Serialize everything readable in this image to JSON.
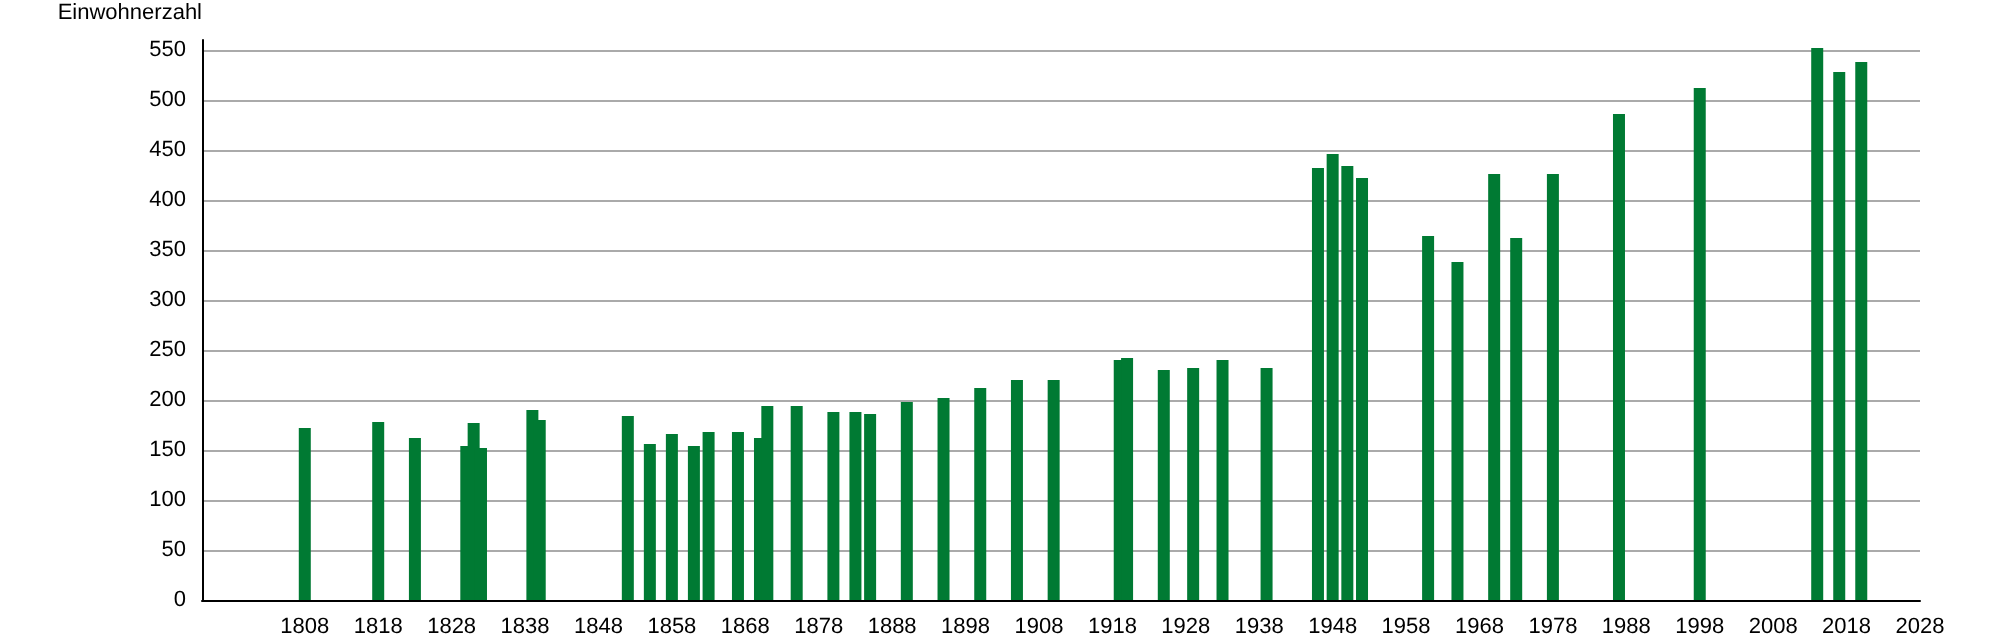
{
  "chart_data": {
    "type": "bar",
    "ylabel": "Einwohnerzahl",
    "x": [
      1808,
      1818,
      1823,
      1830,
      1831,
      1832,
      1839,
      1840,
      1852,
      1855,
      1858,
      1861,
      1863,
      1867,
      1870,
      1871,
      1875,
      1880,
      1883,
      1885,
      1890,
      1895,
      1900,
      1905,
      1910,
      1919,
      1920,
      1925,
      1929,
      1933,
      1939,
      1946,
      1948,
      1950,
      1952,
      1961,
      1965,
      1970,
      1973,
      1978,
      1987,
      1998,
      2014,
      2017,
      2020
    ],
    "values": [
      172,
      178,
      162,
      154,
      177,
      152,
      190,
      180,
      184,
      156,
      166,
      154,
      168,
      168,
      162,
      194,
      194,
      188,
      188,
      186,
      198,
      202,
      212,
      220,
      220,
      240,
      242,
      230,
      232,
      240,
      232,
      432,
      446,
      434,
      422,
      364,
      338,
      426,
      362,
      426,
      486,
      512,
      552,
      528,
      538
    ],
    "color": "#007a33",
    "xlim": [
      1794,
      2028
    ],
    "xticks": [
      1808,
      1818,
      1828,
      1838,
      1848,
      1858,
      1868,
      1878,
      1888,
      1898,
      1908,
      1918,
      1928,
      1938,
      1948,
      1958,
      1968,
      1978,
      1988,
      1998,
      2008,
      2018,
      2028
    ],
    "ylim": [
      0,
      560
    ],
    "yticks": [
      0,
      50,
      100,
      150,
      200,
      250,
      300,
      350,
      400,
      450,
      500,
      550
    ],
    "grid": "y"
  }
}
